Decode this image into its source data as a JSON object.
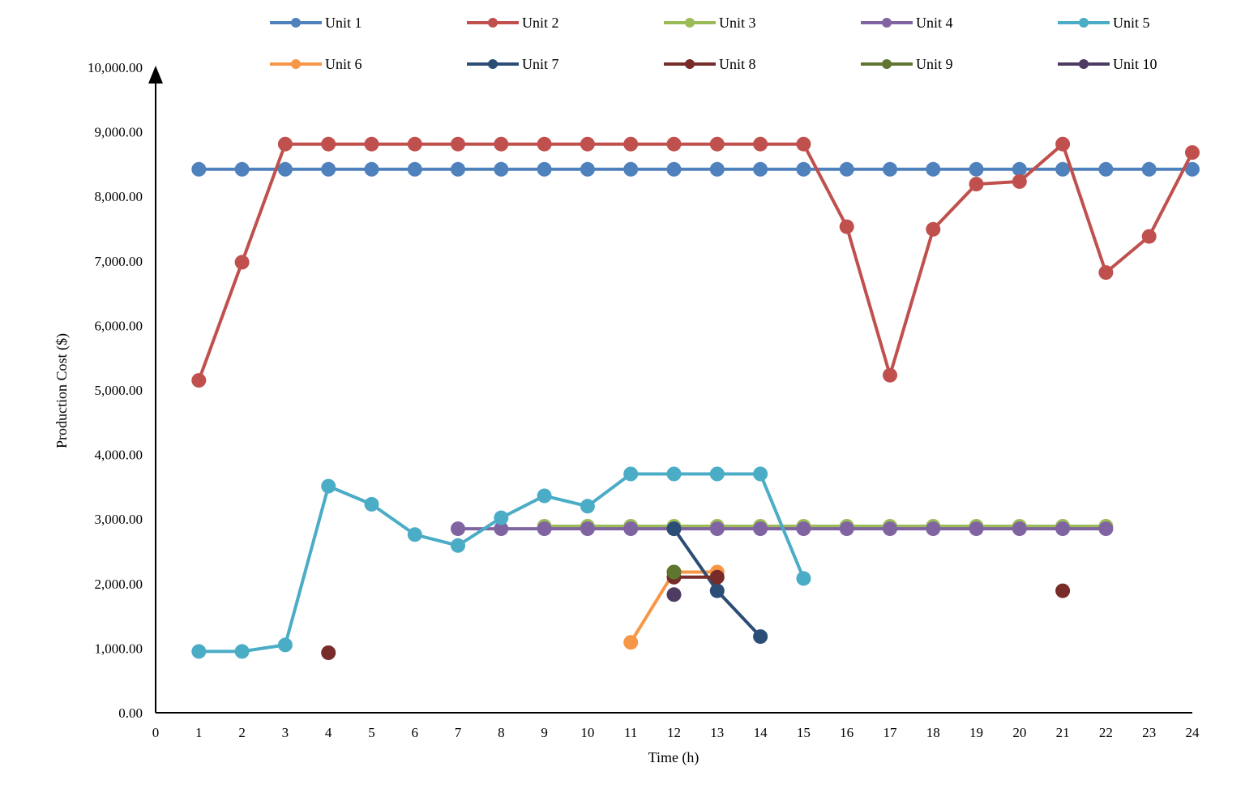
{
  "chart_data": {
    "type": "line",
    "title": "",
    "xlabel": "Time (h)",
    "ylabel": "Production Cost ($)",
    "xlim": [
      0,
      24
    ],
    "ylim": [
      0,
      10000
    ],
    "x_ticks": [
      "0",
      "1",
      "2",
      "3",
      "4",
      "5",
      "6",
      "7",
      "8",
      "9",
      "10",
      "11",
      "12",
      "13",
      "14",
      "15",
      "16",
      "17",
      "18",
      "19",
      "20",
      "21",
      "22",
      "23",
      "24"
    ],
    "y_ticks": [
      "0.00",
      "1,000.00",
      "2,000.00",
      "3,000.00",
      "4,000.00",
      "5,000.00",
      "6,000.00",
      "7,000.00",
      "8,000.00",
      "9,000.00",
      "10,000.00"
    ],
    "grid": false,
    "legend_position": "top",
    "series": [
      {
        "name": "Unit 1",
        "color": "#4F81BD",
        "points": [
          [
            1,
            8420
          ],
          [
            2,
            8420
          ],
          [
            3,
            8420
          ],
          [
            4,
            8420
          ],
          [
            5,
            8420
          ],
          [
            6,
            8420
          ],
          [
            7,
            8420
          ],
          [
            8,
            8420
          ],
          [
            9,
            8420
          ],
          [
            10,
            8420
          ],
          [
            11,
            8420
          ],
          [
            12,
            8420
          ],
          [
            13,
            8420
          ],
          [
            14,
            8420
          ],
          [
            15,
            8420
          ],
          [
            16,
            8420
          ],
          [
            17,
            8420
          ],
          [
            18,
            8420
          ],
          [
            19,
            8420
          ],
          [
            20,
            8420
          ],
          [
            21,
            8420
          ],
          [
            22,
            8420
          ],
          [
            23,
            8420
          ],
          [
            24,
            8420
          ]
        ]
      },
      {
        "name": "Unit 2",
        "color": "#C0504D",
        "points": [
          [
            1,
            5150
          ],
          [
            2,
            6980
          ],
          [
            3,
            8810
          ],
          [
            4,
            8810
          ],
          [
            5,
            8810
          ],
          [
            6,
            8810
          ],
          [
            7,
            8810
          ],
          [
            8,
            8810
          ],
          [
            9,
            8810
          ],
          [
            10,
            8810
          ],
          [
            11,
            8810
          ],
          [
            12,
            8810
          ],
          [
            13,
            8810
          ],
          [
            14,
            8810
          ],
          [
            15,
            8810
          ],
          [
            16,
            7530
          ],
          [
            17,
            5230
          ],
          [
            18,
            7490
          ],
          [
            19,
            8190
          ],
          [
            20,
            8230
          ],
          [
            21,
            8810
          ],
          [
            22,
            6820
          ],
          [
            23,
            7380
          ],
          [
            24,
            8680
          ]
        ]
      },
      {
        "name": "Unit 3",
        "color": "#9BBB59",
        "points": [
          [
            9,
            2890
          ],
          [
            10,
            2890
          ],
          [
            11,
            2890
          ],
          [
            12,
            2890
          ],
          [
            13,
            2890
          ],
          [
            14,
            2890
          ],
          [
            15,
            2890
          ],
          [
            16,
            2890
          ],
          [
            17,
            2890
          ],
          [
            18,
            2890
          ],
          [
            19,
            2890
          ],
          [
            20,
            2890
          ],
          [
            21,
            2890
          ],
          [
            22,
            2890
          ]
        ]
      },
      {
        "name": "Unit 4",
        "color": "#8064A2",
        "points": [
          [
            7,
            2850
          ],
          [
            8,
            2850
          ],
          [
            9,
            2850
          ],
          [
            10,
            2850
          ],
          [
            11,
            2850
          ],
          [
            12,
            2850
          ],
          [
            13,
            2850
          ],
          [
            14,
            2850
          ],
          [
            15,
            2850
          ],
          [
            16,
            2850
          ],
          [
            17,
            2850
          ],
          [
            18,
            2850
          ],
          [
            19,
            2850
          ],
          [
            20,
            2850
          ],
          [
            21,
            2850
          ],
          [
            22,
            2850
          ]
        ]
      },
      {
        "name": "Unit 5",
        "color": "#4BACC6",
        "points": [
          [
            1,
            950
          ],
          [
            2,
            950
          ],
          [
            3,
            1050
          ],
          [
            4,
            3510
          ],
          [
            5,
            3230
          ],
          [
            6,
            2760
          ],
          [
            7,
            2590
          ],
          [
            8,
            3020
          ],
          [
            9,
            3360
          ],
          [
            10,
            3200
          ],
          [
            11,
            3700
          ],
          [
            12,
            3700
          ],
          [
            13,
            3700
          ],
          [
            14,
            3700
          ],
          [
            15,
            2080
          ]
        ]
      },
      {
        "name": "Unit 6",
        "color": "#F79646",
        "points": [
          [
            11,
            1090
          ],
          [
            12,
            2180
          ],
          [
            13,
            2180
          ]
        ]
      },
      {
        "name": "Unit 7",
        "color": "#2C4D75",
        "points": [
          [
            12,
            2850
          ],
          [
            13,
            1890
          ],
          [
            14,
            1180
          ]
        ]
      },
      {
        "name": "Unit 8",
        "color": "#772C2A",
        "points": [
          [
            4,
            930
          ]
        ],
        "segments": [
          [
            [
              12,
              2100
            ],
            [
              13,
              2100
            ]
          ],
          [
            [
              21,
              1890
            ]
          ]
        ]
      },
      {
        "name": "Unit 9",
        "color": "#5F7530",
        "points": [
          [
            12,
            2180
          ]
        ]
      },
      {
        "name": "Unit 10",
        "color": "#4D3B62",
        "points": [
          [
            12,
            1830
          ]
        ]
      }
    ]
  }
}
